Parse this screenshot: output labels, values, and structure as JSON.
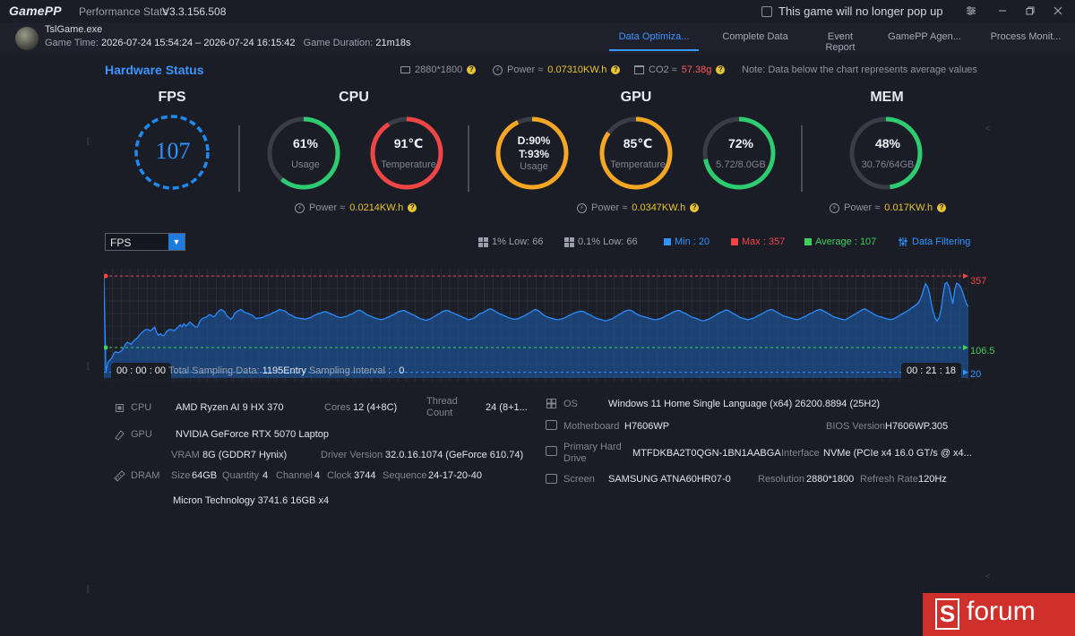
{
  "app": {
    "logo": "GamePP",
    "subtitle": "Performance Stats",
    "version": "V3.3.156.508",
    "no_popup_label": "This game will no longer pop up"
  },
  "game": {
    "name": "TslGame.exe",
    "time_label": "Game Time:",
    "time_range": "2026-07-24 15:54:24 – 2026-07-24 16:15:42",
    "duration_label": "Game Duration:",
    "duration": "21m18s"
  },
  "tabs": [
    {
      "label": "Data Optimiza...",
      "active": true
    },
    {
      "label": "Complete Data",
      "active": false
    },
    {
      "label": "Event Report",
      "active": false
    },
    {
      "label": "GamePP Agen...",
      "active": false
    },
    {
      "label": "Process Monit...",
      "active": false
    }
  ],
  "hardware": {
    "title": "Hardware Status",
    "resolution": "2880*1800",
    "power_label": "Power ≈",
    "power_value": "0.07310KW.h",
    "co2_label": "CO2 ≈",
    "co2_value": "57.38g",
    "note": "Note: Data below the chart represents average values"
  },
  "sections": {
    "fps": {
      "title": "FPS",
      "value": "107"
    },
    "cpu": {
      "title": "CPU",
      "usage": {
        "value": "61%",
        "label": "Usage",
        "level": 0.61,
        "color": "#2ecc71"
      },
      "temp": {
        "value": "91℃",
        "label": "Temperature",
        "level": 0.91,
        "color": "#f04545"
      },
      "power_label": "Power ≈",
      "power_value": "0.0214KW.h"
    },
    "gpu": {
      "title": "GPU",
      "usage": {
        "value_d": "D:90%",
        "value_t": "T:93%",
        "label": "Usage",
        "level": 0.93,
        "color": "#f5a623"
      },
      "temp": {
        "value": "85℃",
        "label": "Temperature",
        "level": 0.85,
        "color": "#f5a623"
      },
      "vram": {
        "value": "72%",
        "label": "5.72/8.0GB",
        "level": 0.72,
        "color": "#2ecc71"
      },
      "power_label": "Power ≈",
      "power_value": "0.0347KW.h"
    },
    "mem": {
      "title": "MEM",
      "usage": {
        "value": "48%",
        "label": "30.76/64GB",
        "level": 0.48,
        "color": "#2ecc71"
      },
      "power_label": "Power ≈",
      "power_value": "0.017KW.h"
    }
  },
  "chart_controls": {
    "metric": "FPS",
    "low1": "1% Low: 66",
    "low01": "0.1% Low: 66",
    "min": "Min : 20",
    "max": "Max : 357",
    "avg": "Average : 107",
    "filter": "Data Filtering"
  },
  "chart_data": {
    "type": "area",
    "ylabel": "",
    "ylim": [
      0,
      370
    ],
    "min": 20,
    "max": 357,
    "avg": 106.5,
    "reference_labels": [
      "357",
      "106.5",
      "20"
    ],
    "start_time": "00 : 00 : 00",
    "end_time": "00 : 21 : 18",
    "sampling_label": "Total Sampling Data:",
    "sampling_value": "1195Entry",
    "interval_label": "Sampling Interval :",
    "interval_value": "0",
    "series": [
      {
        "values": [
          357,
          20,
          55,
          62,
          70,
          85,
          92,
          88,
          90,
          95,
          105,
          118,
          125,
          122,
          118,
          128,
          134,
          140,
          148,
          156,
          162,
          168,
          170,
          168,
          165,
          172,
          178,
          160,
          150,
          155,
          148,
          150,
          162,
          168,
          170,
          168,
          165,
          172,
          178,
          186,
          180,
          190,
          182,
          188,
          196,
          190,
          184,
          178,
          180,
          196,
          206,
          210,
          212,
          216,
          222,
          220,
          214,
          218,
          228,
          235,
          240,
          236,
          230,
          218,
          212,
          206,
          212,
          226,
          232,
          236,
          240,
          236,
          230,
          228,
          226,
          222,
          220,
          214,
          208,
          210,
          210,
          212,
          214,
          218,
          220,
          222,
          226,
          230,
          232,
          236,
          240,
          238,
          236,
          234,
          228,
          222,
          220,
          216,
          212,
          210,
          210,
          208,
          208,
          206,
          208,
          210,
          212,
          216,
          220,
          222,
          226,
          226,
          230,
          232,
          232,
          228,
          226,
          222,
          220,
          216,
          214,
          212,
          212,
          214,
          216,
          218,
          222,
          224,
          228,
          232,
          236,
          238,
          234,
          230,
          225,
          220,
          218,
          216,
          212,
          210,
          208,
          206,
          204,
          206,
          208,
          212,
          214,
          218,
          220,
          224,
          228,
          232,
          234,
          236,
          236,
          232,
          230,
          226,
          222,
          220,
          216,
          212,
          208,
          206,
          204,
          202,
          204,
          206,
          210,
          214,
          218,
          222,
          226,
          230,
          234,
          236,
          236,
          234,
          230,
          228,
          224,
          222,
          218,
          216,
          212,
          210,
          206,
          204,
          206,
          208,
          212,
          216,
          222,
          226,
          228,
          232,
          236,
          240,
          242,
          240,
          236,
          232,
          228,
          224,
          222,
          218,
          216,
          212,
          210,
          208,
          206,
          206,
          208,
          210,
          214,
          216,
          220,
          224,
          228,
          232,
          236,
          240,
          238,
          234,
          228,
          222,
          218,
          214,
          212,
          210,
          208,
          206,
          204,
          204,
          206,
          208,
          210,
          214,
          218,
          220,
          224,
          228,
          230,
          232,
          234,
          234,
          232,
          228,
          224,
          222,
          218,
          214,
          210,
          208,
          206,
          204,
          202,
          200,
          202,
          204,
          206,
          210,
          214,
          218,
          222,
          226,
          230,
          234,
          236,
          238,
          236,
          234,
          228,
          224,
          220,
          218,
          216,
          214,
          212,
          210,
          208,
          206,
          204,
          204,
          206,
          208,
          210,
          214,
          218,
          220,
          224,
          228,
          232,
          234,
          236,
          236,
          232,
          228,
          226,
          222,
          218,
          214,
          212,
          210,
          208,
          204,
          202,
          200,
          202,
          204,
          206,
          210,
          214,
          218,
          222,
          226,
          230,
          232,
          236,
          238,
          236,
          232,
          228,
          224,
          220,
          216,
          212,
          210,
          208,
          206,
          204,
          206,
          208,
          210,
          214,
          218,
          220,
          224,
          228,
          232,
          236,
          238,
          240,
          238,
          234,
          230,
          226,
          222,
          218,
          216,
          214,
          212,
          210,
          208,
          206,
          204,
          206,
          208,
          212,
          214,
          218,
          222,
          226,
          228,
          232,
          236,
          238,
          240,
          238,
          234,
          230,
          226,
          222,
          218,
          214,
          212,
          210,
          208,
          206,
          204,
          204,
          208,
          212,
          216,
          220,
          224,
          228,
          232,
          236,
          240,
          242,
          238,
          234,
          230,
          226,
          222,
          218,
          216,
          214,
          212,
          210,
          208,
          206,
          204,
          206,
          208,
          212,
          216,
          220,
          224,
          228,
          232,
          236,
          240,
          246,
          250,
          256,
          260,
          270,
          286,
          310,
          330,
          320,
          300,
          260,
          230,
          210,
          200,
          210,
          240,
          290,
          330,
          335,
          320,
          290,
          260,
          310,
          332,
          328,
          318,
          302,
          280,
          260,
          250
        ],
        "note": "visual approximation of FPS trace"
      }
    ]
  },
  "specs": {
    "cpu": {
      "label": "CPU",
      "name": "AMD Ryzen AI 9 HX 370",
      "cores_label": "Cores",
      "cores": "12 (4+8C)",
      "thread_label_1": "Thread",
      "thread_label_2": "Count",
      "thread": "24 (8+1..."
    },
    "gpu": {
      "label": "GPU",
      "name": "NVIDIA GeForce RTX 5070 Laptop",
      "vram_label": "VRAM",
      "vram": "8G (GDDR7 Hynix)",
      "driver_label": "Driver Version",
      "driver": "32.0.16.1074 (GeForce 610.74)"
    },
    "dram": {
      "label": "DRAM",
      "size_label": "Size",
      "size": "64GB",
      "qty_label": "Quantity",
      "qty": "4",
      "channel_label": "Channel",
      "channel": "4",
      "clock_label": "Clock",
      "clock": "3744",
      "seq_label": "Sequence",
      "seq": "24-17-20-40",
      "module": "Micron Technology 3741.6 16GB x4"
    },
    "os": {
      "label": "OS",
      "value": "Windows 11 Home Single Language (x64) 26200.8894 (25H2)"
    },
    "motherboard": {
      "label": "Motherboard",
      "value": "H7606WP",
      "bios_label": "BIOS Version",
      "bios": "H7606WP.305"
    },
    "drive": {
      "label_1": "Primary Hard",
      "label_2": "Drive",
      "value": "MTFDKBA2T0QGN-1BN1AABGA",
      "iface_label": "Interface",
      "iface": "NVMe (PCIe x4 16.0 GT/s @ x4..."
    },
    "screen": {
      "label": "Screen",
      "value": "SAMSUNG ATNA60HR07-0",
      "res_label": "Resolution",
      "res": "2880*1800",
      "rate_label": "Refresh Rate",
      "rate": "120Hz"
    }
  },
  "watermark": {
    "letter": "S",
    "text": "forum"
  }
}
